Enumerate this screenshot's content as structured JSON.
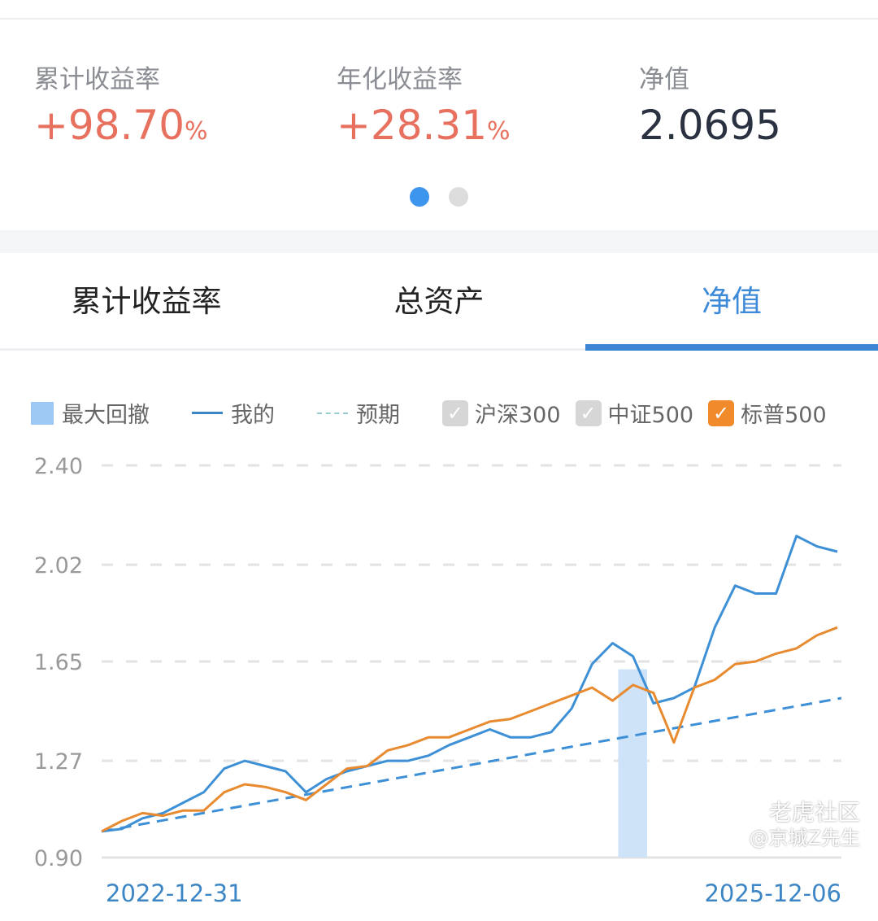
{
  "stats": [
    {
      "label": "累计收益率",
      "value": "+98.70",
      "unit": "%"
    },
    {
      "label": "年化收益率",
      "value": "+28.31",
      "unit": "%"
    },
    {
      "label": "净值",
      "value": "2.0695",
      "unit": ""
    }
  ],
  "pager": {
    "pages": 2,
    "active": 1
  },
  "tabs": [
    {
      "label": "累计收益率"
    },
    {
      "label": "总资产"
    },
    {
      "label": "净值",
      "active": true
    }
  ],
  "legend": {
    "drawdown": "最大回撤",
    "mine": "我的",
    "expected": "预期",
    "checkboxes": [
      {
        "label": "沪深300",
        "checked": false
      },
      {
        "label": "中证500",
        "checked": false
      },
      {
        "label": "标普500",
        "checked": true
      }
    ]
  },
  "colors": {
    "mine": "#3d8fd6",
    "expected": "#3d8fd6",
    "sp500": "#e88a30",
    "drawdown": "#cfe3f8",
    "up": "#e8705e",
    "accent": "#3d86d6"
  },
  "watermark": {
    "line1": "老虎社区",
    "line2": "@京城Z先生"
  },
  "chart_data": {
    "type": "line",
    "x_start": "2022-12-31",
    "x_end": "2025-12-06",
    "x_tick_labels": [
      "2022-12-31",
      "2025-12-06"
    ],
    "y_ticks": [
      "2.40",
      "2.02",
      "1.65",
      "1.27",
      "0.90"
    ],
    "ylim": [
      0.9,
      2.4
    ],
    "grid": true,
    "legend_position": "top",
    "drawdown": {
      "start": "2025-01-21",
      "end": "2025-03-04"
    },
    "series": [
      {
        "name": "我的",
        "style": "solid",
        "values": [
          1.0,
          1.01,
          1.05,
          1.07,
          1.11,
          1.15,
          1.24,
          1.27,
          1.25,
          1.23,
          1.15,
          1.2,
          1.23,
          1.25,
          1.27,
          1.27,
          1.29,
          1.33,
          1.36,
          1.39,
          1.36,
          1.36,
          1.38,
          1.47,
          1.64,
          1.72,
          1.67,
          1.49,
          1.51,
          1.55,
          1.78,
          1.94,
          1.91,
          1.91,
          2.13,
          2.09,
          2.07
        ]
      },
      {
        "name": "预期",
        "style": "dashed",
        "values": [
          1.0,
          1.51
        ]
      },
      {
        "name": "标普500",
        "style": "solid",
        "values": [
          1.0,
          1.04,
          1.07,
          1.06,
          1.08,
          1.08,
          1.15,
          1.18,
          1.17,
          1.15,
          1.12,
          1.18,
          1.24,
          1.25,
          1.31,
          1.33,
          1.36,
          1.36,
          1.39,
          1.42,
          1.43,
          1.46,
          1.49,
          1.52,
          1.55,
          1.5,
          1.56,
          1.53,
          1.34,
          1.55,
          1.58,
          1.64,
          1.65,
          1.68,
          1.7,
          1.75,
          1.78
        ]
      }
    ]
  }
}
